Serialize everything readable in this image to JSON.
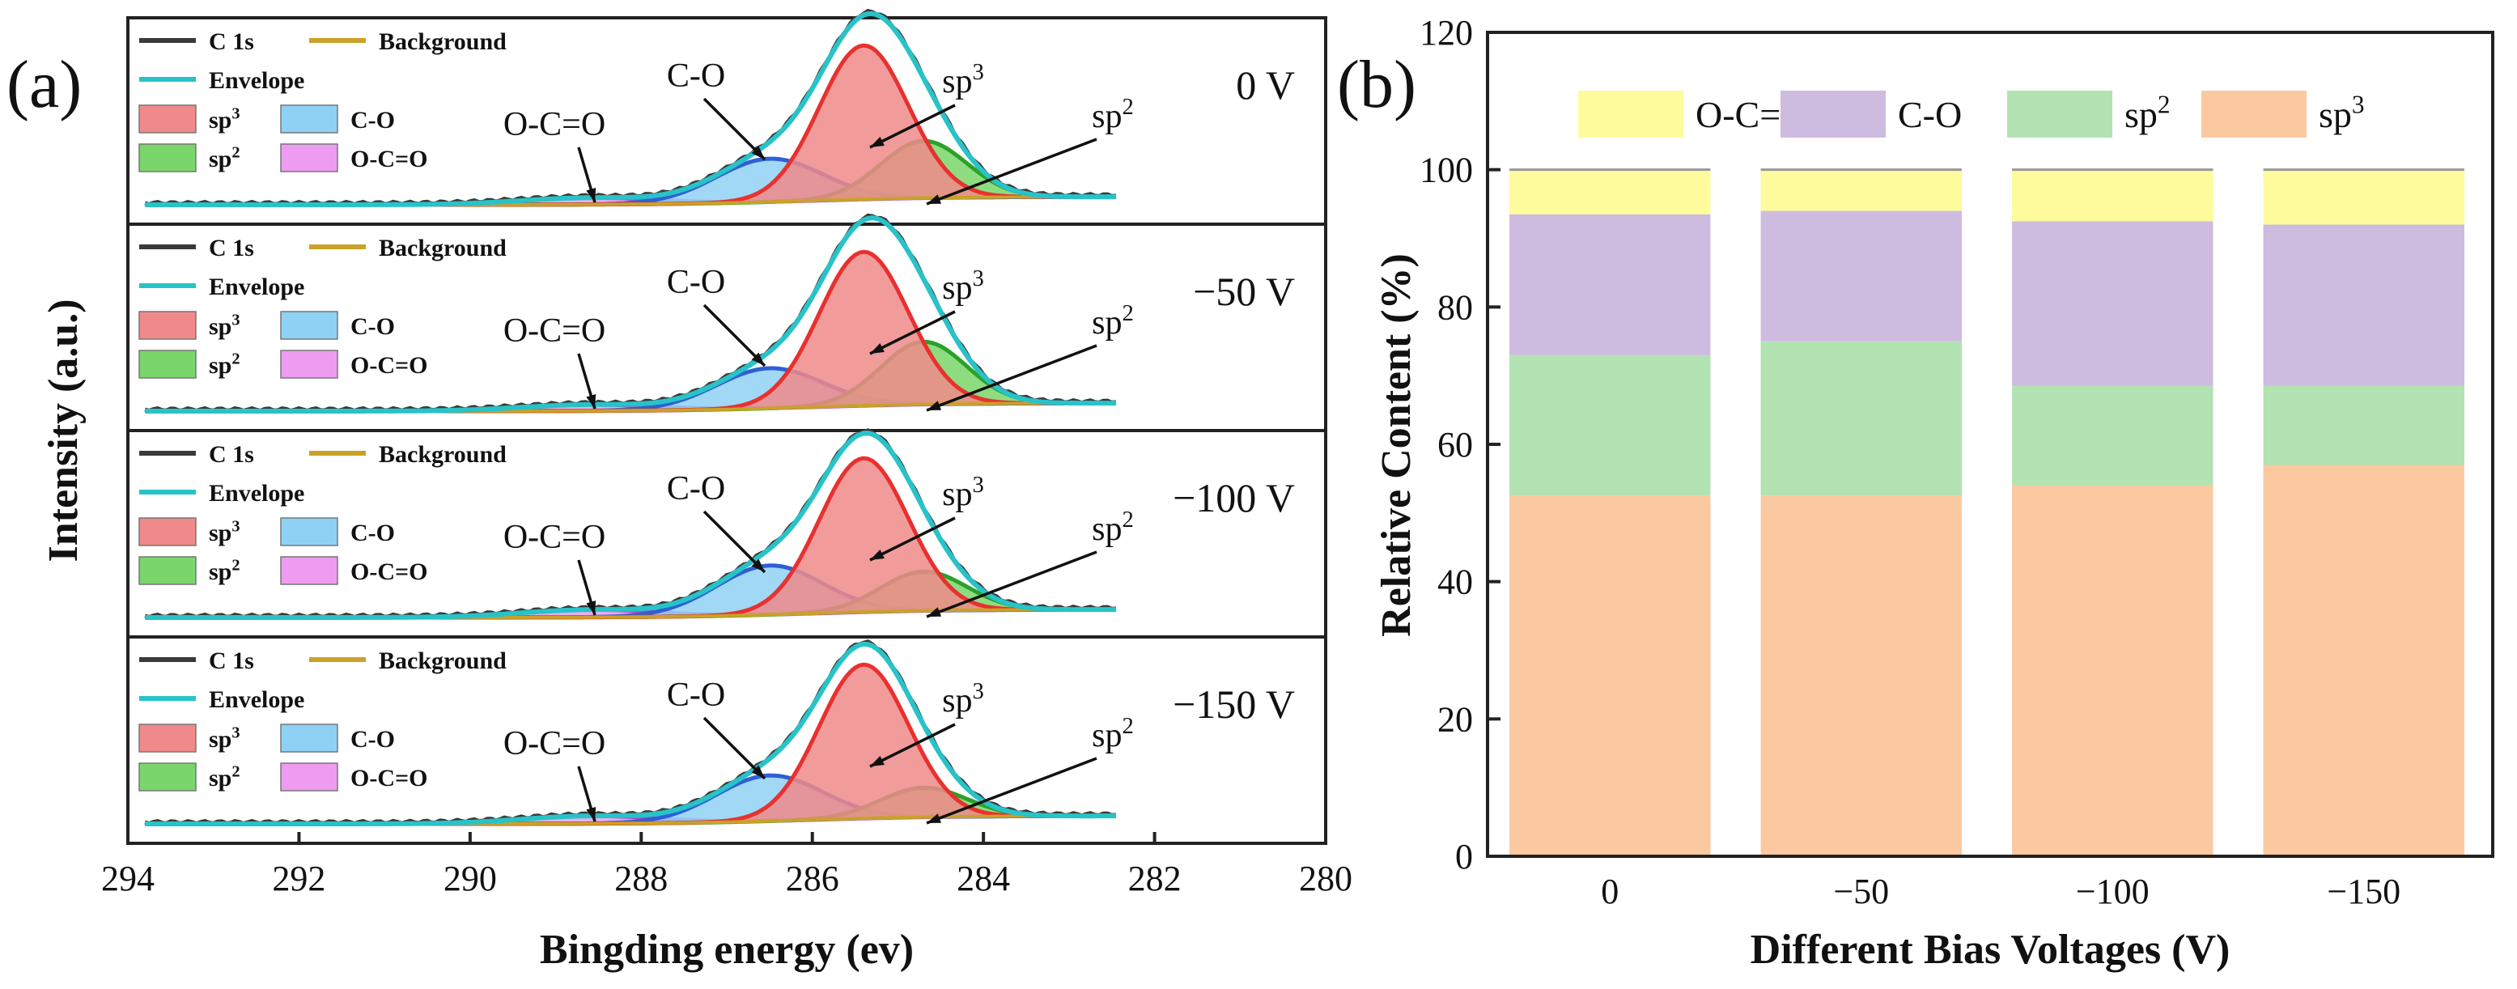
{
  "figure": {
    "panel_a_label": "(a)",
    "panel_b_label": "(b)"
  },
  "chart_data": [
    {
      "type": "line",
      "panel": "(a)",
      "xlabel": "Bingding energy (ev)",
      "ylabel": "Intensity (a.u.)",
      "xlim": [
        294,
        280
      ],
      "x_reversed": true,
      "xticks": [
        294,
        292,
        290,
        288,
        286,
        284,
        282,
        280
      ],
      "legend": [
        {
          "label": "C 1s",
          "color": "#3a3a3a",
          "kind": "line"
        },
        {
          "label": "Background",
          "color": "#c9a227",
          "kind": "line"
        },
        {
          "label": "Envelope",
          "color": "#27c3c8",
          "kind": "line"
        },
        {
          "label": "sp",
          "sup": "3",
          "color": "#f08a8a",
          "kind": "patch"
        },
        {
          "label": "C-O",
          "color": "#8fd1f5",
          "kind": "patch"
        },
        {
          "label": "sp",
          "sup": "2",
          "color": "#7ad66a",
          "kind": "patch"
        },
        {
          "label": "O-C=O",
          "color": "#ee9cf0",
          "kind": "patch"
        }
      ],
      "peak_labels": {
        "sp3": {
          "text": "sp",
          "sup": "3"
        },
        "sp2": {
          "text": "sp",
          "sup": "2"
        },
        "co": {
          "text": "C-O"
        },
        "oco": {
          "text": "O-C=O"
        }
      },
      "components": [
        {
          "key": "sp3",
          "center": 285.4,
          "fill": "#f08a8a",
          "line": "#e8312f"
        },
        {
          "key": "co",
          "center": 286.5,
          "fill": "#8fd1f5",
          "line": "#2f5fd6"
        },
        {
          "key": "sp2",
          "center": 284.7,
          "fill": "#7ad66a",
          "line": "#2aa12a"
        },
        {
          "key": "oco",
          "center": 288.6,
          "fill": "#ee9cf0",
          "line": "#b24bd0"
        }
      ],
      "stacks": [
        {
          "bias": "0 V",
          "sp3_area": 52.5,
          "sp2_area": 20.5,
          "co_area": 20.5,
          "oco_area": 6.5
        },
        {
          "bias": "−50 V",
          "sp3_area": 52.5,
          "sp2_area": 22.5,
          "co_area": 19.0,
          "oco_area": 6.0
        },
        {
          "bias": "−100 V",
          "sp3_area": 54.0,
          "sp2_area": 14.5,
          "co_area": 24.0,
          "oco_area": 7.5
        },
        {
          "bias": "−150 V",
          "sp3_area": 57.0,
          "sp2_area": 11.5,
          "co_area": 23.5,
          "oco_area": 8.0
        }
      ]
    },
    {
      "type": "bar",
      "stacked": true,
      "panel": "(b)",
      "xlabel": "Different Bias Voltages (V)",
      "ylabel": "Relative Content (%)",
      "ylim": [
        0,
        120
      ],
      "yticks": [
        0,
        20,
        40,
        60,
        80,
        100,
        120
      ],
      "categories": [
        "0",
        "−50",
        "−100",
        "−150"
      ],
      "legend_position": "top",
      "series": [
        {
          "name": "sp",
          "sup": "3",
          "color": "#fbc9a0",
          "values": [
            52.5,
            52.5,
            54.0,
            57.0
          ]
        },
        {
          "name": "sp",
          "sup": "2",
          "color": "#b3e2b3",
          "values": [
            20.5,
            22.5,
            14.5,
            11.5
          ]
        },
        {
          "name": "C-O",
          "color": "#cdbbe0",
          "values": [
            20.5,
            19.0,
            24.0,
            23.5
          ]
        },
        {
          "name": "O-C=O",
          "color": "#fdfb9c",
          "values": [
            6.5,
            6.0,
            7.5,
            8.0
          ]
        }
      ],
      "legend_order": [
        3,
        2,
        1,
        0
      ]
    }
  ]
}
